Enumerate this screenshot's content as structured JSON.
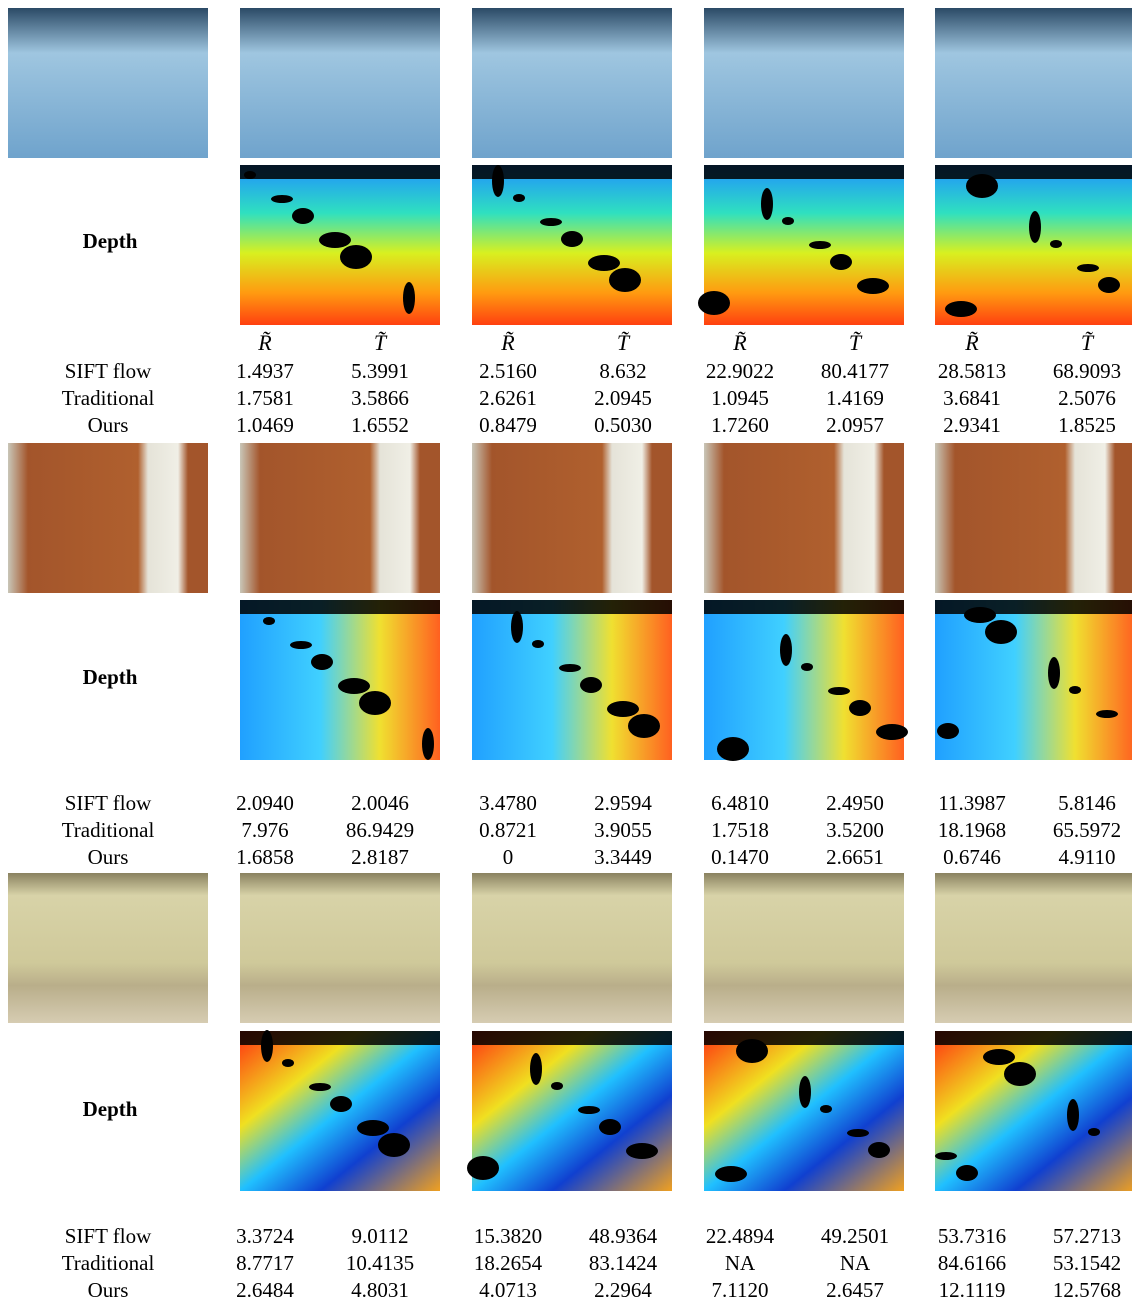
{
  "groups": [
    {
      "depth_label": "Depth",
      "headers": [
        "R̃",
        "T̃",
        "R̃",
        "T̃",
        "R̃",
        "T̃",
        "R̃",
        "T̃"
      ],
      "rows": [
        {
          "label": "SIFT flow",
          "values": [
            "1.4937",
            "5.3991",
            "2.5160",
            "8.632",
            "22.9022",
            "80.4177",
            "28.5813",
            "68.9093"
          ]
        },
        {
          "label": "Traditional",
          "values": [
            "1.7581",
            "3.5866",
            "2.6261",
            "2.0945",
            "1.0945",
            "1.4169",
            "3.6841",
            "2.5076"
          ]
        },
        {
          "label": "Ours",
          "values": [
            "1.0469",
            "1.6552",
            "0.8479",
            "0.5030",
            "1.7260",
            "2.0957",
            "2.9341",
            "1.8525"
          ]
        }
      ]
    },
    {
      "depth_label": "Depth",
      "rows": [
        {
          "label": "SIFT flow",
          "values": [
            "2.0940",
            "2.0046",
            "3.4780",
            "2.9594",
            "6.4810",
            "2.4950",
            "11.3987",
            "5.8146"
          ]
        },
        {
          "label": "Traditional",
          "values": [
            "7.976",
            "86.9429",
            "0.8721",
            "3.9055",
            "1.7518",
            "3.5200",
            "18.1968",
            "65.5972"
          ]
        },
        {
          "label": "Ours",
          "values": [
            "1.6858",
            "2.8187",
            "0",
            "3.3449",
            "0.1470",
            "2.6651",
            "0.6746",
            "4.9110"
          ]
        }
      ]
    },
    {
      "depth_label": "Depth",
      "rows": [
        {
          "label": "SIFT flow",
          "values": [
            "3.3724",
            "9.0112",
            "15.3820",
            "48.9364",
            "22.4894",
            "49.2501",
            "53.7316",
            "57.2713"
          ]
        },
        {
          "label": "Traditional",
          "values": [
            "8.7717",
            "10.4135",
            "18.2654",
            "83.1424",
            "NA",
            "NA",
            "84.6166",
            "53.1542"
          ]
        },
        {
          "label": "Ours",
          "values": [
            "2.6484",
            "4.8031",
            "4.0713",
            "2.2964",
            "7.1120",
            "2.6457",
            "12.1119",
            "12.5768"
          ]
        }
      ]
    }
  ]
}
